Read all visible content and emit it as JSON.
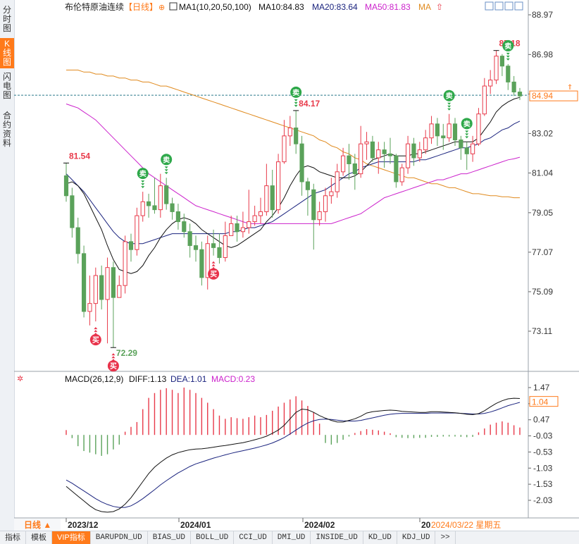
{
  "sidebar": {
    "tabs": [
      {
        "label": "分时图",
        "active": false
      },
      {
        "label": "K线图",
        "active": true
      },
      {
        "label": "闪电图",
        "active": false
      },
      {
        "label": "合约资料",
        "active": false
      }
    ]
  },
  "header": {
    "instrument": "布伦特原油连续",
    "period": "【日线】",
    "ma_title": "MA1(10,20,50,100)",
    "ma10": "MA10:84.83",
    "ma20": "MA20:83.64",
    "ma50": "MA50:81.83",
    "ma_more": "MA"
  },
  "macd_header": {
    "title": "MACD(26,12,9)",
    "diff": "DIFF:1.13",
    "dea": "DEA:1.01",
    "macd": "MACD:0.23"
  },
  "xaxis": {
    "labels": [
      "2023/12",
      "2024/01",
      "2024/02",
      "20"
    ],
    "current_date": "2024/03/22 星期五",
    "period_button": "日线 ▲"
  },
  "bottom_tabs": [
    "指标",
    "模板",
    "VIP指标",
    "BARUPDN_UD",
    "BIAS_UD",
    "BOLL_UD",
    "CCI_UD",
    "DMI_UD",
    "INSIDE_UD",
    "KD_UD",
    "KDJ_UD",
    ">>"
  ],
  "colors": {
    "up": "#e83a4a",
    "down": "#5aa25a",
    "ma10": "#111111",
    "ma20": "#1a237e",
    "ma50": "#cc22cc",
    "ma100": "#e08a1e",
    "accent": "#ff7a1a"
  },
  "chart_data": [
    {
      "type": "candlestick",
      "title": "布伦特原油连续",
      "price_ticks": [
        88.97,
        86.98,
        85.0,
        83.02,
        81.04,
        79.05,
        77.07,
        75.09,
        73.11
      ],
      "ylim": [
        72.29,
        88.97
      ],
      "last_price": 84.94,
      "annotations": [
        {
          "label": "81.54",
          "value": 81.54
        },
        {
          "label": "72.29",
          "value": 72.29
        },
        {
          "label": "84.17",
          "value": 84.17
        },
        {
          "label": "87.18",
          "value": 87.18
        }
      ],
      "signals": [
        {
          "type": "buy",
          "label": "买",
          "index": 5
        },
        {
          "type": "buy",
          "label": "买",
          "index": 8
        },
        {
          "type": "sell",
          "label": "卖",
          "index": 13
        },
        {
          "type": "sell",
          "label": "卖",
          "index": 17
        },
        {
          "type": "buy",
          "label": "买",
          "index": 25
        },
        {
          "type": "sell",
          "label": "卖",
          "index": 39
        },
        {
          "type": "sell",
          "label": "卖",
          "index": 65
        },
        {
          "type": "sell",
          "label": "卖",
          "index": 68
        },
        {
          "type": "sell",
          "label": "卖",
          "index": 75
        }
      ],
      "candles": [
        [
          80.9,
          79.9,
          81.54,
          79.6
        ],
        [
          79.9,
          78.3,
          80.3,
          77.8
        ],
        [
          78.3,
          77.0,
          78.8,
          76.5
        ],
        [
          77.0,
          74.1,
          77.4,
          73.8
        ],
        [
          74.1,
          74.5,
          75.9,
          73.4
        ],
        [
          74.5,
          75.9,
          76.3,
          73.6
        ],
        [
          75.9,
          74.7,
          76.4,
          74.2
        ],
        [
          74.7,
          76.3,
          76.8,
          72.5
        ],
        [
          76.3,
          74.8,
          76.6,
          72.29
        ],
        [
          74.8,
          75.4,
          75.9,
          74.9
        ],
        [
          75.4,
          77.6,
          77.9,
          75.0
        ],
        [
          77.6,
          77.2,
          78.0,
          76.6
        ],
        [
          77.2,
          78.9,
          79.3,
          76.9
        ],
        [
          78.9,
          79.6,
          80.1,
          78.6
        ],
        [
          79.6,
          79.4,
          80.0,
          78.8
        ],
        [
          79.4,
          79.2,
          80.8,
          79.0
        ],
        [
          79.2,
          80.4,
          81.0,
          78.8
        ],
        [
          80.4,
          79.5,
          80.8,
          79.2
        ],
        [
          79.5,
          79.1,
          79.8,
          78.7
        ],
        [
          79.1,
          78.6,
          79.5,
          78.2
        ],
        [
          78.6,
          78.1,
          79.0,
          77.8
        ],
        [
          78.1,
          77.4,
          78.5,
          76.8
        ],
        [
          77.4,
          77.2,
          77.9,
          76.6
        ],
        [
          77.2,
          75.8,
          77.6,
          75.4
        ],
        [
          75.8,
          77.5,
          77.9,
          75.2
        ],
        [
          77.5,
          77.3,
          78.2,
          76.9
        ],
        [
          77.3,
          76.8,
          78.0,
          76.5
        ],
        [
          76.8,
          77.9,
          78.6,
          76.6
        ],
        [
          77.9,
          78.5,
          78.9,
          77.9
        ],
        [
          78.5,
          78.1,
          78.9,
          77.6
        ],
        [
          78.1,
          78.3,
          79.1,
          77.8
        ],
        [
          78.3,
          78.6,
          80.2,
          78.0
        ],
        [
          78.6,
          78.9,
          79.4,
          78.4
        ],
        [
          78.9,
          79.1,
          79.8,
          78.5
        ],
        [
          79.1,
          80.4,
          81.5,
          78.9
        ],
        [
          80.4,
          79.2,
          81.2,
          78.8
        ],
        [
          79.2,
          81.6,
          82.0,
          79.0
        ],
        [
          81.6,
          82.9,
          83.7,
          81.5
        ],
        [
          82.9,
          83.3,
          83.9,
          82.4
        ],
        [
          83.3,
          82.5,
          84.17,
          82.0
        ],
        [
          82.5,
          80.6,
          82.9,
          79.9
        ],
        [
          80.6,
          80.2,
          80.8,
          78.9
        ],
        [
          80.2,
          78.7,
          80.5,
          77.2
        ],
        [
          78.7,
          79.1,
          79.6,
          78.4
        ],
        [
          79.1,
          79.9,
          80.3,
          78.6
        ],
        [
          79.9,
          80.1,
          80.8,
          79.5
        ],
        [
          80.1,
          81.1,
          81.5,
          79.8
        ],
        [
          81.1,
          81.9,
          82.3,
          80.9
        ],
        [
          81.9,
          81.5,
          82.5,
          80.7
        ],
        [
          81.5,
          81.0,
          82.0,
          80.2
        ],
        [
          81.0,
          82.5,
          83.4,
          80.8
        ],
        [
          82.5,
          82.6,
          83.1,
          81.7
        ],
        [
          82.6,
          81.8,
          82.9,
          81.6
        ],
        [
          81.8,
          82.2,
          82.6,
          81.0
        ],
        [
          82.2,
          82.0,
          82.6,
          81.3
        ],
        [
          82.0,
          81.9,
          82.8,
          81.5
        ],
        [
          81.9,
          80.6,
          82.0,
          80.3
        ],
        [
          80.6,
          81.3,
          81.5,
          80.4
        ],
        [
          81.3,
          82.5,
          82.9,
          81.0
        ],
        [
          82.5,
          81.8,
          82.8,
          81.4
        ],
        [
          81.8,
          82.2,
          82.6,
          81.6
        ],
        [
          82.2,
          82.8,
          83.2,
          82.0
        ],
        [
          82.8,
          83.5,
          83.9,
          82.5
        ],
        [
          83.5,
          82.9,
          83.8,
          82.4
        ],
        [
          82.9,
          82.8,
          83.5,
          82.2
        ],
        [
          82.8,
          83.5,
          84.0,
          82.6
        ],
        [
          83.5,
          82.7,
          83.8,
          82.4
        ],
        [
          82.7,
          82.3,
          82.9,
          81.7
        ],
        [
          82.3,
          82.0,
          82.6,
          81.2
        ],
        [
          82.0,
          82.5,
          82.9,
          81.6
        ],
        [
          82.5,
          84.0,
          84.3,
          82.4
        ],
        [
          84.0,
          85.4,
          85.8,
          83.9
        ],
        [
          85.4,
          85.7,
          86.2,
          85.0
        ],
        [
          85.7,
          86.9,
          87.18,
          85.5
        ],
        [
          86.9,
          86.4,
          87.0,
          85.9
        ],
        [
          86.4,
          85.6,
          86.5,
          85.2
        ],
        [
          85.6,
          85.1,
          85.9,
          84.9
        ],
        [
          85.1,
          84.9,
          85.3,
          84.7
        ]
      ],
      "ma10": [
        80.5,
        80.6,
        80.4,
        80.0,
        79.4,
        78.8,
        78.2,
        77.4,
        76.7,
        76.2,
        76.1,
        76.0,
        76.1,
        76.4,
        76.9,
        77.3,
        77.8,
        78.2,
        78.5,
        78.7,
        78.8,
        78.7,
        78.5,
        78.2,
        78.0,
        77.8,
        77.6,
        77.4,
        77.3,
        77.4,
        77.6,
        77.8,
        78.0,
        78.2,
        78.6,
        78.9,
        79.3,
        79.8,
        80.4,
        80.9,
        81.3,
        81.4,
        81.3,
        81.1,
        81.0,
        80.9,
        80.8,
        80.8,
        80.8,
        80.9,
        81.1,
        81.4,
        81.7,
        81.8,
        81.9,
        82.0,
        81.9,
        81.9,
        81.9,
        82.0,
        82.0,
        82.1,
        82.2,
        82.3,
        82.4,
        82.5,
        82.6,
        82.6,
        82.6,
        82.6,
        82.8,
        83.2,
        83.6,
        84.1,
        84.4,
        84.6,
        84.75,
        84.83
      ],
      "ma20": [
        81.0,
        80.7,
        80.4,
        80.1,
        79.7,
        79.3,
        78.9,
        78.5,
        78.1,
        77.8,
        77.6,
        77.5,
        77.5,
        77.5,
        77.6,
        77.7,
        77.8,
        77.9,
        78.0,
        78.0,
        78.0,
        78.0,
        78.0,
        78.0,
        78.0,
        78.0,
        78.0,
        78.0,
        78.1,
        78.1,
        78.2,
        78.3,
        78.3,
        78.4,
        78.5,
        78.6,
        78.8,
        79.0,
        79.2,
        79.4,
        79.6,
        79.8,
        80.0,
        80.1,
        80.2,
        80.4,
        80.6,
        80.8,
        81.0,
        81.1,
        81.3,
        81.4,
        81.5,
        81.6,
        81.6,
        81.6,
        81.6,
        81.6,
        81.6,
        81.6,
        81.7,
        81.7,
        81.8,
        81.9,
        82.0,
        82.1,
        82.2,
        82.3,
        82.3,
        82.4,
        82.5,
        82.7,
        82.8,
        83.0,
        83.2,
        83.3,
        83.5,
        83.64
      ],
      "ma50": [
        84.5,
        84.4,
        84.3,
        84.1,
        83.9,
        83.7,
        83.4,
        83.1,
        82.8,
        82.5,
        82.2,
        81.9,
        81.6,
        81.3,
        81.0,
        80.8,
        80.6,
        80.4,
        80.2,
        80.0,
        79.8,
        79.6,
        79.4,
        79.3,
        79.2,
        79.1,
        79.0,
        78.9,
        78.8,
        78.7,
        78.6,
        78.5,
        78.5,
        78.5,
        78.5,
        78.5,
        78.5,
        78.5,
        78.5,
        78.5,
        78.5,
        78.5,
        78.5,
        78.5,
        78.5,
        78.5,
        78.6,
        78.7,
        78.8,
        78.9,
        79.0,
        79.2,
        79.4,
        79.6,
        79.8,
        79.9,
        80.0,
        80.1,
        80.2,
        80.3,
        80.4,
        80.5,
        80.6,
        80.7,
        80.7,
        80.8,
        80.9,
        81.0,
        81.0,
        81.1,
        81.2,
        81.3,
        81.4,
        81.5,
        81.6,
        81.7,
        81.75,
        81.83
      ],
      "ma100": [
        86.2,
        86.2,
        86.2,
        86.1,
        86.1,
        86.0,
        86.0,
        85.9,
        85.9,
        85.8,
        85.8,
        85.7,
        85.7,
        85.6,
        85.6,
        85.5,
        85.4,
        85.4,
        85.3,
        85.2,
        85.1,
        85.0,
        84.9,
        84.8,
        84.7,
        84.6,
        84.5,
        84.4,
        84.3,
        84.2,
        84.1,
        84.0,
        83.9,
        83.8,
        83.7,
        83.6,
        83.5,
        83.4,
        83.3,
        83.2,
        83.1,
        83.0,
        82.9,
        82.7,
        82.6,
        82.4,
        82.3,
        82.1,
        82.0,
        81.8,
        81.7,
        81.5,
        81.4,
        81.3,
        81.2,
        81.1,
        81.0,
        80.9,
        80.8,
        80.8,
        80.7,
        80.6,
        80.5,
        80.5,
        80.4,
        80.3,
        80.3,
        80.2,
        80.1,
        80.0,
        80.0,
        79.95,
        79.9,
        79.9,
        79.85,
        79.85,
        79.8,
        79.8
      ]
    },
    {
      "type": "macd",
      "title": "MACD(26,12,9)",
      "y_ticks": [
        1.47,
        0.97,
        0.47,
        -0.03,
        -0.53,
        -1.03,
        -1.53,
        -2.03
      ],
      "last_value": 1.04,
      "diff": [
        -1.6,
        -1.75,
        -1.9,
        -2.05,
        -2.2,
        -2.32,
        -2.38,
        -2.4,
        -2.38,
        -2.3,
        -2.15,
        -1.95,
        -1.7,
        -1.45,
        -1.2,
        -1.0,
        -0.85,
        -0.72,
        -0.62,
        -0.55,
        -0.5,
        -0.46,
        -0.44,
        -0.43,
        -0.41,
        -0.38,
        -0.35,
        -0.33,
        -0.3,
        -0.27,
        -0.24,
        -0.2,
        -0.15,
        -0.1,
        -0.04,
        0.05,
        0.15,
        0.3,
        0.5,
        0.7,
        0.8,
        0.78,
        0.7,
        0.6,
        0.52,
        0.45,
        0.4,
        0.4,
        0.45,
        0.5,
        0.58,
        0.68,
        0.72,
        0.74,
        0.76,
        0.77,
        0.76,
        0.73,
        0.72,
        0.71,
        0.7,
        0.7,
        0.72,
        0.72,
        0.71,
        0.7,
        0.69,
        0.67,
        0.64,
        0.63,
        0.66,
        0.75,
        0.87,
        0.98,
        1.06,
        1.12,
        1.14,
        1.13
      ],
      "dea": [
        -1.4,
        -1.5,
        -1.62,
        -1.74,
        -1.86,
        -1.98,
        -2.08,
        -2.16,
        -2.22,
        -2.25,
        -2.25,
        -2.2,
        -2.1,
        -1.98,
        -1.84,
        -1.7,
        -1.55,
        -1.42,
        -1.3,
        -1.18,
        -1.08,
        -0.98,
        -0.9,
        -0.84,
        -0.78,
        -0.72,
        -0.67,
        -0.62,
        -0.57,
        -0.53,
        -0.49,
        -0.45,
        -0.41,
        -0.36,
        -0.31,
        -0.25,
        -0.17,
        -0.08,
        0.03,
        0.15,
        0.27,
        0.37,
        0.44,
        0.48,
        0.49,
        0.48,
        0.46,
        0.44,
        0.43,
        0.43,
        0.45,
        0.49,
        0.53,
        0.57,
        0.61,
        0.64,
        0.66,
        0.67,
        0.67,
        0.67,
        0.67,
        0.67,
        0.68,
        0.68,
        0.68,
        0.68,
        0.68,
        0.67,
        0.66,
        0.65,
        0.65,
        0.67,
        0.71,
        0.77,
        0.84,
        0.91,
        0.96,
        1.01
      ],
      "histogram": [
        0.15,
        -0.1,
        -0.35,
        -0.5,
        -0.55,
        -0.6,
        -0.65,
        -0.6,
        -0.45,
        -0.3,
        0.1,
        0.25,
        0.4,
        0.8,
        1.15,
        1.3,
        1.4,
        1.45,
        1.4,
        1.3,
        1.47,
        1.4,
        1.3,
        1.15,
        1.0,
        0.8,
        0.6,
        0.5,
        0.55,
        0.52,
        0.5,
        0.55,
        0.6,
        0.55,
        0.62,
        0.75,
        0.88,
        1.0,
        1.1,
        1.2,
        1.07,
        0.9,
        0.7,
        0.35,
        -0.25,
        -0.3,
        -0.25,
        -0.15,
        -0.05,
        0.06,
        0.12,
        0.18,
        0.16,
        0.14,
        0.1,
        0.05,
        -0.07,
        -0.09,
        -0.1,
        -0.1,
        -0.09,
        -0.09,
        -0.06,
        -0.06,
        -0.05,
        -0.05,
        -0.05,
        -0.06,
        -0.07,
        -0.06,
        0.08,
        0.2,
        0.32,
        0.38,
        0.42,
        0.38,
        0.3,
        0.23
      ]
    }
  ]
}
